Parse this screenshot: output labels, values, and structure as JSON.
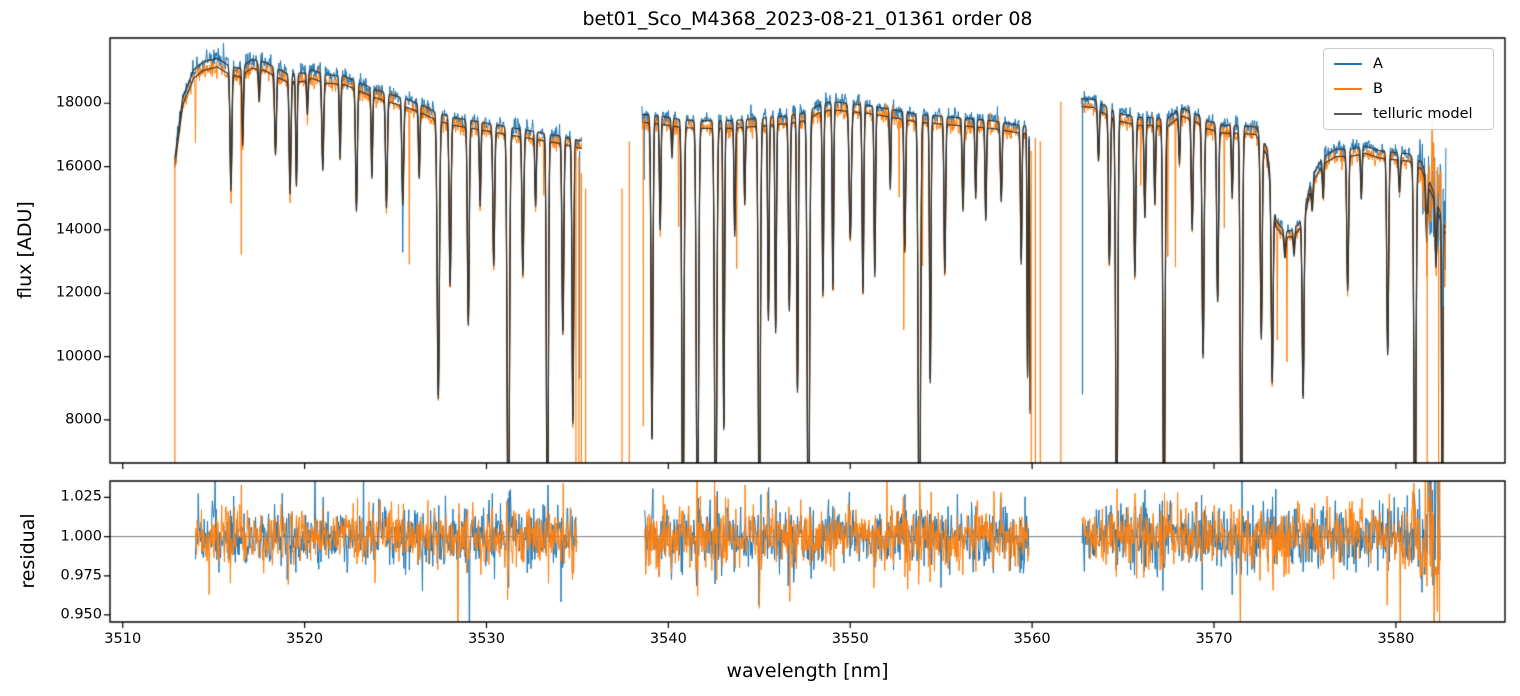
{
  "chart_data": {
    "type": "line",
    "title": "bet01_Sco_M4368_2023-08-21_01361  order 08",
    "xlabel": "wavelength [nm]",
    "xlim": [
      3509.3,
      3586.0
    ],
    "xticks": [
      3510,
      3520,
      3530,
      3540,
      3550,
      3560,
      3570,
      3580
    ],
    "grid": false,
    "legend_position": "upper right",
    "panels": [
      {
        "name": "flux",
        "ylabel": "flux [ADU]",
        "ylim": [
          6640,
          20060
        ],
        "yticks": [
          {
            "v": 8000,
            "label": "8000"
          },
          {
            "v": 10000,
            "label": "10000"
          },
          {
            "v": 12000,
            "label": "12000"
          },
          {
            "v": 14000,
            "label": "14000"
          },
          {
            "v": 16000,
            "label": "16000"
          },
          {
            "v": 18000,
            "label": "18000"
          }
        ]
      },
      {
        "name": "residual",
        "ylabel": "residual",
        "ylim": [
          0.9455,
          1.0355
        ],
        "hline": 1.0,
        "yticks": [
          {
            "v": 0.95,
            "label": "0.950"
          },
          {
            "v": 0.975,
            "label": "0.975"
          },
          {
            "v": 1.0,
            "label": "1.000"
          },
          {
            "v": 1.025,
            "label": "1.025"
          }
        ]
      }
    ],
    "series": [
      {
        "label": "A",
        "color": "#1f77b4"
      },
      {
        "label": "B",
        "color": "#ff7f0e"
      },
      {
        "label": "telluric model",
        "color": "#595959",
        "plot_color": "#3a342f"
      }
    ],
    "model": {
      "b_scale": 0.986,
      "noise_sigma_flux": 0.008,
      "noise_sigma_resid": 0.0095,
      "seed": 42,
      "flux_segments": [
        [
          3512.85,
          3535.25
        ],
        [
          3538.55,
          3559.9
        ],
        [
          3562.7,
          3582.75
        ]
      ],
      "residual_segments": [
        [
          3514.0,
          3535.0
        ],
        [
          3538.7,
          3559.85
        ],
        [
          3562.75,
          3582.45
        ]
      ],
      "continuum": [
        [
          3512.85,
          16200
        ],
        [
          3513.3,
          18200
        ],
        [
          3513.9,
          19050
        ],
        [
          3514.4,
          19300
        ],
        [
          3515.2,
          19420
        ],
        [
          3515.8,
          19200
        ],
        [
          3516.4,
          19100
        ],
        [
          3517.1,
          19380
        ],
        [
          3517.8,
          19300
        ],
        [
          3518.3,
          19150
        ],
        [
          3519.0,
          18950
        ],
        [
          3519.9,
          18950
        ],
        [
          3520.4,
          19050
        ],
        [
          3521.2,
          18900
        ],
        [
          3522.2,
          18850
        ],
        [
          3523.0,
          18650
        ],
        [
          3523.8,
          18450
        ],
        [
          3524.6,
          18300
        ],
        [
          3525.5,
          18150
        ],
        [
          3526.4,
          17950
        ],
        [
          3527.3,
          17700
        ],
        [
          3528.2,
          17550
        ],
        [
          3529.2,
          17450
        ],
        [
          3530.2,
          17350
        ],
        [
          3531.2,
          17250
        ],
        [
          3532.2,
          17150
        ],
        [
          3533.2,
          17050
        ],
        [
          3534.2,
          16950
        ],
        [
          3535.25,
          16800
        ],
        [
          3538.55,
          17650
        ],
        [
          3539.5,
          17600
        ],
        [
          3540.5,
          17500
        ],
        [
          3541.5,
          17450
        ],
        [
          3542.5,
          17450
        ],
        [
          3543.5,
          17450
        ],
        [
          3544.5,
          17500
        ],
        [
          3545.5,
          17550
        ],
        [
          3546.5,
          17600
        ],
        [
          3547.5,
          17700
        ],
        [
          3548.3,
          17950
        ],
        [
          3549.0,
          18050
        ],
        [
          3549.8,
          18000
        ],
        [
          3550.8,
          17950
        ],
        [
          3551.8,
          17850
        ],
        [
          3552.8,
          17750
        ],
        [
          3553.8,
          17650
        ],
        [
          3554.8,
          17600
        ],
        [
          3555.8,
          17550
        ],
        [
          3556.8,
          17500
        ],
        [
          3557.8,
          17450
        ],
        [
          3558.8,
          17350
        ],
        [
          3560.5,
          17200
        ],
        [
          3562.7,
          18150
        ],
        [
          3563.4,
          18120
        ],
        [
          3564.2,
          17850
        ],
        [
          3565.0,
          17650
        ],
        [
          3565.8,
          17550
        ],
        [
          3566.6,
          17550
        ],
        [
          3567.4,
          17500
        ],
        [
          3568.2,
          17850
        ],
        [
          3568.9,
          17700
        ],
        [
          3569.6,
          17450
        ],
        [
          3570.5,
          17300
        ],
        [
          3571.4,
          17300
        ],
        [
          3572.3,
          17250
        ],
        [
          3572.9,
          16600
        ],
        [
          3573.4,
          14300
        ],
        [
          3573.9,
          13950
        ],
        [
          3574.4,
          14000
        ],
        [
          3574.9,
          14400
        ],
        [
          3575.4,
          15700
        ],
        [
          3576.0,
          16300
        ],
        [
          3576.7,
          16550
        ],
        [
          3577.5,
          16550
        ],
        [
          3578.3,
          16650
        ],
        [
          3579.1,
          16500
        ],
        [
          3579.9,
          16450
        ],
        [
          3580.7,
          16400
        ],
        [
          3581.4,
          16150
        ],
        [
          3582.0,
          15300
        ],
        [
          3582.7,
          14100
        ]
      ],
      "absorption_lines": [
        [
          3515.95,
          15450,
          0.05
        ],
        [
          3516.6,
          16900,
          0.04
        ],
        [
          3517.5,
          18300,
          0.04
        ],
        [
          3518.4,
          16600,
          0.05
        ],
        [
          3519.2,
          15350,
          0.05
        ],
        [
          3519.55,
          15600,
          0.04
        ],
        [
          3520.15,
          17900,
          0.04
        ],
        [
          3521.0,
          16100,
          0.05
        ],
        [
          3521.95,
          16450,
          0.04
        ],
        [
          3522.85,
          14800,
          0.05
        ],
        [
          3523.7,
          15850,
          0.04
        ],
        [
          3524.5,
          14900,
          0.05
        ],
        [
          3525.4,
          15000,
          0.05
        ],
        [
          3526.3,
          15850,
          0.04
        ],
        [
          3527.35,
          8800,
          0.06
        ],
        [
          3528.0,
          12400,
          0.05
        ],
        [
          3529.0,
          11150,
          0.05
        ],
        [
          3529.65,
          14950,
          0.04
        ],
        [
          3530.4,
          13050,
          0.05
        ],
        [
          3531.2,
          3000,
          0.06
        ],
        [
          3532.0,
          12750,
          0.05
        ],
        [
          3532.7,
          14950,
          0.04
        ],
        [
          3533.35,
          2800,
          0.05
        ],
        [
          3534.2,
          10850,
          0.05
        ],
        [
          3534.75,
          8000,
          0.045
        ],
        [
          3539.1,
          7500,
          0.05
        ],
        [
          3539.55,
          14200,
          0.04
        ],
        [
          3540.2,
          16500,
          0.035
        ],
        [
          3540.8,
          3500,
          0.055
        ],
        [
          3541.6,
          3500,
          0.06
        ],
        [
          3542.6,
          3500,
          0.06
        ],
        [
          3543.05,
          7800,
          0.04
        ],
        [
          3543.65,
          14000,
          0.04
        ],
        [
          3544.2,
          15000,
          0.035
        ],
        [
          3545.0,
          3500,
          0.055
        ],
        [
          3545.5,
          11300,
          0.04
        ],
        [
          3545.9,
          10900,
          0.04
        ],
        [
          3546.65,
          11600,
          0.045
        ],
        [
          3547.1,
          9000,
          0.04
        ],
        [
          3547.7,
          2500,
          0.06
        ],
        [
          3548.5,
          12100,
          0.04
        ],
        [
          3549.05,
          12300,
          0.04
        ],
        [
          3550.0,
          13900,
          0.06
        ],
        [
          3550.7,
          12200,
          0.045
        ],
        [
          3551.35,
          12700,
          0.04
        ],
        [
          3552.2,
          15500,
          0.035
        ],
        [
          3553.0,
          13500,
          0.045
        ],
        [
          3553.8,
          2500,
          0.06
        ],
        [
          3554.4,
          9300,
          0.04
        ],
        [
          3555.2,
          12800,
          0.045
        ],
        [
          3556.2,
          14800,
          0.045
        ],
        [
          3556.9,
          15200,
          0.04
        ],
        [
          3557.45,
          14500,
          0.04
        ],
        [
          3558.3,
          15100,
          0.045
        ],
        [
          3559.4,
          13100,
          0.04
        ],
        [
          3559.75,
          9500,
          0.03
        ],
        [
          3559.92,
          2500,
          0.03
        ],
        [
          3563.65,
          16400,
          0.045
        ],
        [
          3564.25,
          13100,
          0.05
        ],
        [
          3564.65,
          3500,
          0.055
        ],
        [
          3565.65,
          12700,
          0.05
        ],
        [
          3566.2,
          14600,
          0.045
        ],
        [
          3566.75,
          15000,
          0.04
        ],
        [
          3567.25,
          3500,
          0.055
        ],
        [
          3568.1,
          16300,
          0.04
        ],
        [
          3568.8,
          14200,
          0.05
        ],
        [
          3569.4,
          10100,
          0.055
        ],
        [
          3570.2,
          11900,
          0.05
        ],
        [
          3571.0,
          15200,
          0.04
        ],
        [
          3571.5,
          3500,
          0.055
        ],
        [
          3572.6,
          10700,
          0.05
        ],
        [
          3573.2,
          9300,
          0.05
        ],
        [
          3573.9,
          13300,
          0.045
        ],
        [
          3574.4,
          13400,
          0.04
        ],
        [
          3574.9,
          8800,
          0.05
        ],
        [
          3575.4,
          14800,
          0.045
        ],
        [
          3576.0,
          15200,
          0.04
        ],
        [
          3577.35,
          12250,
          0.05
        ],
        [
          3578.1,
          15200,
          0.04
        ],
        [
          3579.55,
          10200,
          0.05
        ],
        [
          3580.2,
          15400,
          0.045
        ],
        [
          3581.05,
          3000,
          0.055
        ],
        [
          3581.7,
          13800,
          0.05
        ],
        [
          3582.2,
          13000,
          0.04
        ],
        [
          3582.55,
          2500,
          0.03
        ]
      ],
      "edge_spikes": [
        {
          "s": "B",
          "x": 3512.87,
          "v0": 16300,
          "v1": 2000
        },
        {
          "s": "B",
          "x": 3534.92,
          "v0": 16600,
          "v1": 2000
        },
        {
          "s": "A",
          "x": 3535.12,
          "v0": 16500,
          "v1": 9300
        },
        {
          "s": "B",
          "x": 3535.08,
          "v0": 16300,
          "v1": 2000
        },
        {
          "s": "B",
          "x": 3535.22,
          "v0": 15800,
          "v1": 2000
        },
        {
          "s": "B",
          "x": 3535.45,
          "v0": 15300,
          "v1": 2000
        },
        {
          "s": "B",
          "x": 3537.45,
          "v0": 15300,
          "v1": 2000
        },
        {
          "s": "B",
          "x": 3537.85,
          "v0": 16800,
          "v1": 2000
        },
        {
          "s": "B",
          "x": 3538.62,
          "v0": 17500,
          "v1": 7800
        },
        {
          "s": "B",
          "x": 3559.95,
          "v0": 16500,
          "v1": 2000
        },
        {
          "s": "B",
          "x": 3560.18,
          "v0": 16900,
          "v1": 2000
        },
        {
          "s": "B",
          "x": 3560.45,
          "v0": 16800,
          "v1": 2000
        },
        {
          "s": "B",
          "x": 3561.58,
          "v0": 18050,
          "v1": 2000
        },
        {
          "s": "A",
          "x": 3562.77,
          "v0": 18100,
          "v1": 8800
        },
        {
          "s": "B",
          "x": 3581.72,
          "v0": 14500,
          "v1": 2000
        },
        {
          "s": "B",
          "x": 3582.35,
          "v0": 13500,
          "v1": 2000
        },
        {
          "s": "A",
          "x": 3582.6,
          "v0": 15300,
          "v1": 11600
        }
      ]
    }
  }
}
